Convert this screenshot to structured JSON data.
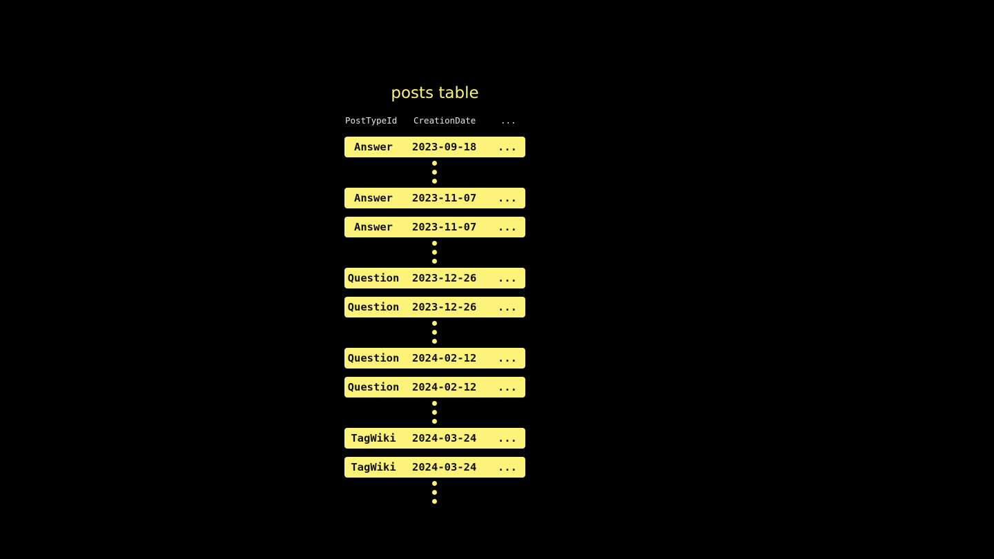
{
  "title": "posts table",
  "columns": [
    "PostTypeId",
    "CreationDate",
    "..."
  ],
  "colors": {
    "accent": "#fdf27a",
    "background": "#000000"
  },
  "sequence": [
    {
      "type": "row",
      "cells": [
        "Answer",
        "2023-09-18",
        "..."
      ]
    },
    {
      "type": "gap"
    },
    {
      "type": "row",
      "cells": [
        "Answer",
        "2023-11-07",
        "..."
      ]
    },
    {
      "type": "row",
      "cells": [
        "Answer",
        "2023-11-07",
        "..."
      ]
    },
    {
      "type": "gap"
    },
    {
      "type": "row",
      "cells": [
        "Question",
        "2023-12-26",
        "..."
      ]
    },
    {
      "type": "row",
      "cells": [
        "Question",
        "2023-12-26",
        "..."
      ]
    },
    {
      "type": "gap"
    },
    {
      "type": "row",
      "cells": [
        "Question",
        "2024-02-12",
        "..."
      ]
    },
    {
      "type": "row",
      "cells": [
        "Question",
        "2024-02-12",
        "..."
      ]
    },
    {
      "type": "gap"
    },
    {
      "type": "row",
      "cells": [
        "TagWiki",
        "2024-03-24",
        "..."
      ]
    },
    {
      "type": "row",
      "cells": [
        "TagWiki",
        "2024-03-24",
        "..."
      ]
    },
    {
      "type": "gap"
    }
  ]
}
